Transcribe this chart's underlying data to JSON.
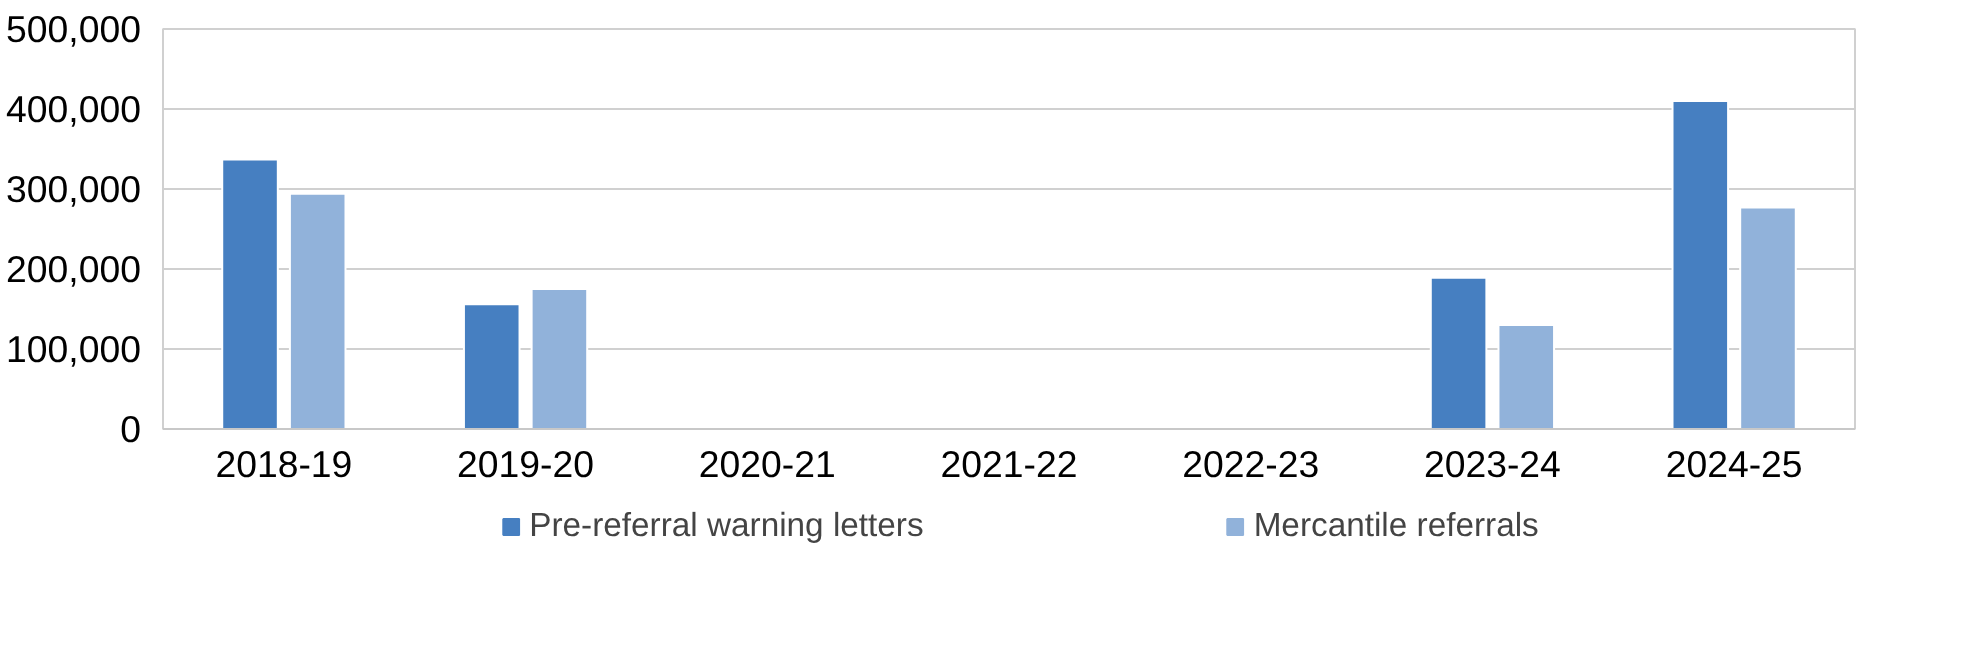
{
  "chart_data": {
    "type": "bar",
    "categories": [
      "2018-19",
      "2019-20",
      "2020-21",
      "2021-22",
      "2022-23",
      "2023-24",
      "2024-25"
    ],
    "series": [
      {
        "name": "Pre-referral warning letters",
        "color": "#467fc1",
        "values": [
          337000,
          156000,
          null,
          null,
          null,
          189000,
          410000
        ]
      },
      {
        "name": "Mercantile referrals",
        "color": "#91b2da",
        "values": [
          294000,
          175000,
          null,
          null,
          null,
          130000,
          277000
        ]
      }
    ],
    "ylim": [
      0,
      500000
    ],
    "yticks": [
      {
        "value": 0,
        "label": "0"
      },
      {
        "value": 100000,
        "label": "100,000"
      },
      {
        "value": 200000,
        "label": "200,000"
      },
      {
        "value": 300000,
        "label": "300,000"
      },
      {
        "value": 400000,
        "label": "400,000"
      },
      {
        "value": 500000,
        "label": "500,000"
      }
    ],
    "grid": "y",
    "legend": "bottom"
  }
}
